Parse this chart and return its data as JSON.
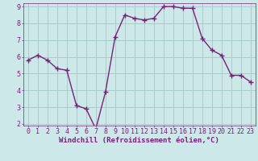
{
  "xlabel": "Windchill (Refroidissement éolien,°C)",
  "hours": [
    0,
    1,
    2,
    3,
    4,
    5,
    6,
    7,
    8,
    9,
    10,
    11,
    12,
    13,
    14,
    15,
    16,
    17,
    18,
    19,
    20,
    21,
    22,
    23
  ],
  "values": [
    5.8,
    6.1,
    5.8,
    5.3,
    5.2,
    3.1,
    2.9,
    1.7,
    3.9,
    7.2,
    8.5,
    8.3,
    8.2,
    8.3,
    9.0,
    9.0,
    8.9,
    8.9,
    7.1,
    6.4,
    6.1,
    4.9,
    4.9,
    4.5
  ],
  "line_color": "#7b1f7b",
  "bg_color": "#cce8e8",
  "grid_color": "#a0c8c8",
  "ylim": [
    1.9,
    9.2
  ],
  "yticks": [
    2,
    3,
    4,
    5,
    6,
    7,
    8,
    9
  ],
  "marker": "+",
  "marker_size": 4,
  "line_width": 1.0,
  "font_family": "monospace",
  "xlabel_fontsize": 6.5,
  "tick_fontsize": 6.0
}
